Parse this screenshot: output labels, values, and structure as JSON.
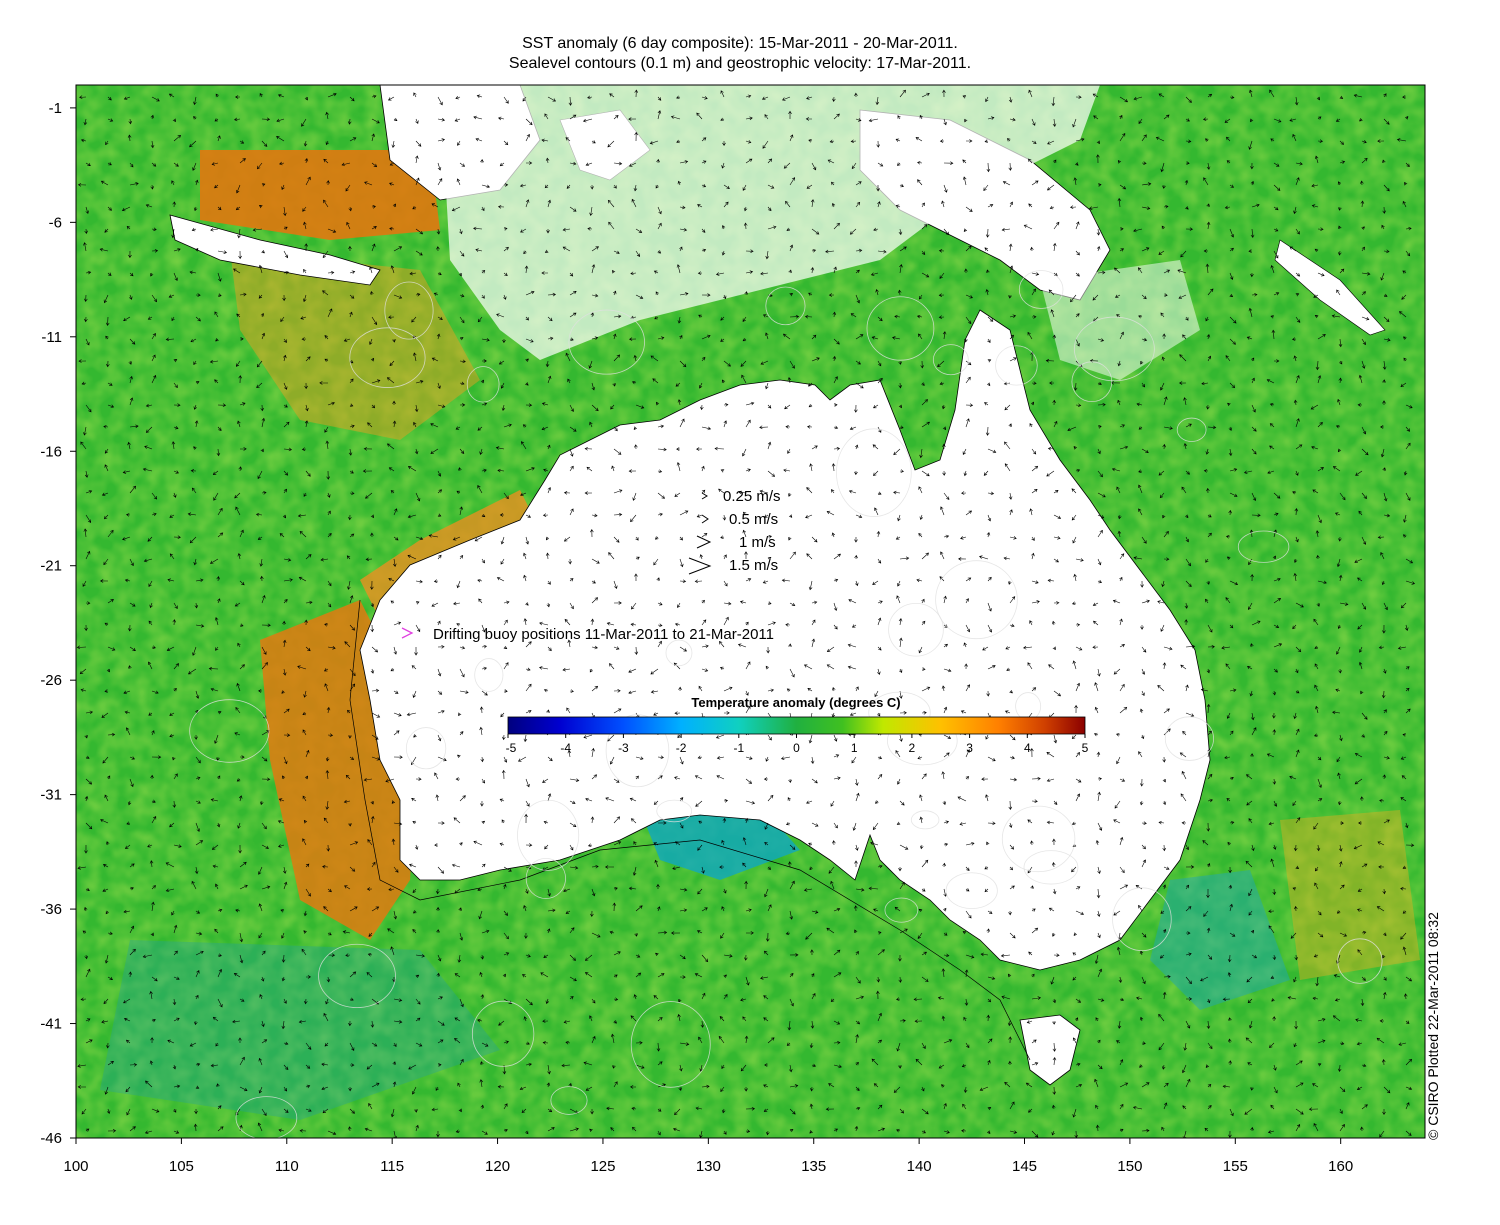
{
  "title": {
    "line1": "SST anomaly (6 day composite): 15-Mar-2011 - 20-Mar-2011.",
    "line2": "Sealevel contours (0.1 m) and geostrophic velocity: 17-Mar-2011."
  },
  "axes": {
    "x_ticks": [
      "100",
      "105",
      "110",
      "115",
      "120",
      "125",
      "130",
      "135",
      "140",
      "145",
      "150",
      "155",
      "160"
    ],
    "y_ticks": [
      "-1",
      "-6",
      "-11",
      "-16",
      "-21",
      "-26",
      "-31",
      "-36",
      "-41",
      "-46"
    ],
    "lon_range": [
      100,
      164
    ],
    "lat_range": [
      -46,
      0
    ]
  },
  "velocity_legend": [
    {
      "label": "0.25 m/s"
    },
    {
      "label": "0.5 m/s"
    },
    {
      "label": "1 m/s"
    },
    {
      "label": "1.5 m/s"
    }
  ],
  "buoy_legend": {
    "label": "Drifting buoy positions 11-Mar-2011 to 21-Mar-2011",
    "color": "#e040e0"
  },
  "colorbar": {
    "title": "Temperature anomaly (degrees C)",
    "ticks": [
      "-5",
      "-4",
      "-3",
      "-2",
      "-1",
      "0",
      "1",
      "2",
      "3",
      "4",
      "5"
    ],
    "range": [
      -5,
      5
    ],
    "colors": [
      "#00007f",
      "#0000d0",
      "#0050ff",
      "#00b0ff",
      "#10d0c0",
      "#20c070",
      "#10b020",
      "#60d020",
      "#d0f000",
      "#ffc000",
      "#ff8000",
      "#d04000",
      "#8b0000"
    ]
  },
  "credit": "© CSIRO Plotted 22-Mar-2011 08:32",
  "colors": {
    "ocean_anomaly_neutral": "#34b830",
    "warm_anomaly": "#e88a10",
    "land": "#ffffff",
    "contours": "#e0e0e0"
  }
}
